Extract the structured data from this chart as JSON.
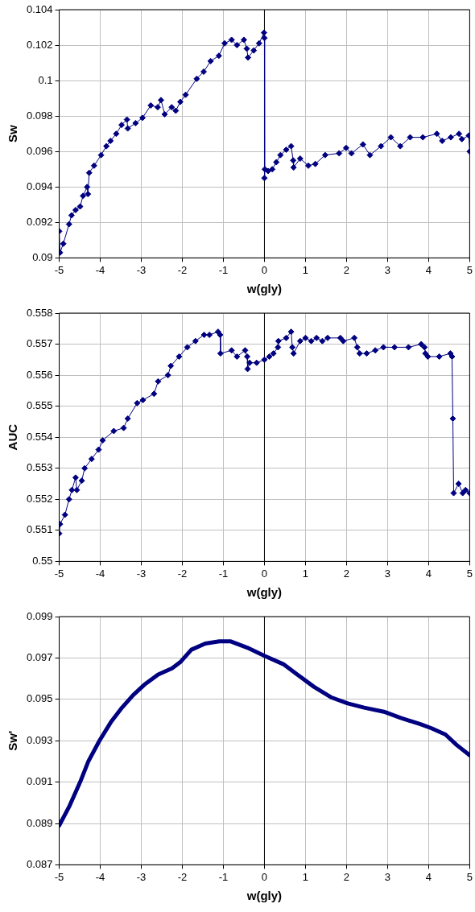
{
  "chart_data": [
    {
      "type": "line",
      "xlabel": "w(gly)",
      "ylabel": "Sw",
      "xlim": [
        -5,
        5
      ],
      "xticks": [
        -5,
        -4,
        -3,
        -2,
        -1,
        0,
        1,
        2,
        3,
        4,
        5
      ],
      "ylim": [
        0.09,
        0.104
      ],
      "yticks": [
        0.09,
        0.092,
        0.094,
        0.096,
        0.098,
        0.1,
        0.102,
        0.104
      ],
      "grid": true,
      "legend": false,
      "marker": "diamond",
      "line_style": "solid",
      "ref_lines": [
        {
          "axis": "x",
          "value": 0,
          "color": "#000000"
        }
      ],
      "series": [
        {
          "color": "#000080",
          "x": [
            -5,
            -4.98,
            -4.9,
            -4.76,
            -4.7,
            -4.6,
            -4.49,
            -4.42,
            -4.32,
            -4.3,
            -4.27,
            -4.15,
            -3.98,
            -3.85,
            -3.75,
            -3.61,
            -3.48,
            -3.35,
            -3.33,
            -3.14,
            -2.97,
            -2.77,
            -2.6,
            -2.52,
            -2.43,
            -2.26,
            -2.16,
            -2.05,
            -1.92,
            -1.65,
            -1.48,
            -1.31,
            -1.11,
            -0.97,
            -0.8,
            -0.67,
            -0.5,
            -0.43,
            -0.4,
            -0.26,
            -0.13,
            -0.01,
            0,
            0,
            0.01,
            0.09,
            0.19,
            0.29,
            0.39,
            0.53,
            0.65,
            0.7,
            0.71,
            0.87,
            1.07,
            1.24,
            1.48,
            1.82,
            1.99,
            2.12,
            2.4,
            2.57,
            2.84,
            3.08,
            3.31,
            3.55,
            3.86,
            4.2,
            4.33,
            4.54,
            4.74,
            4.81,
            4.98,
            5
          ],
          "values": [
            0.0915,
            0.0903,
            0.0908,
            0.0919,
            0.0924,
            0.0927,
            0.0929,
            0.0935,
            0.094,
            0.0936,
            0.0948,
            0.0952,
            0.0958,
            0.0963,
            0.0966,
            0.097,
            0.0975,
            0.0978,
            0.0973,
            0.0976,
            0.0979,
            0.0986,
            0.0985,
            0.0989,
            0.0981,
            0.0985,
            0.0983,
            0.0988,
            0.0992,
            0.1001,
            0.1005,
            0.1011,
            0.1014,
            0.1021,
            0.1023,
            0.102,
            0.1023,
            0.1018,
            0.1013,
            0.1017,
            0.1021,
            0.1027,
            0.1024,
            0.0945,
            0.095,
            0.0949,
            0.095,
            0.0954,
            0.0958,
            0.0961,
            0.0963,
            0.0955,
            0.0951,
            0.0956,
            0.0952,
            0.0953,
            0.0958,
            0.0959,
            0.0962,
            0.0959,
            0.0964,
            0.0958,
            0.0963,
            0.0968,
            0.0963,
            0.0968,
            0.0968,
            0.097,
            0.0966,
            0.0968,
            0.097,
            0.0967,
            0.0969,
            0.096
          ]
        }
      ]
    },
    {
      "type": "line",
      "xlabel": "w(gly)",
      "ylabel": "AUC",
      "xlim": [
        -5,
        5
      ],
      "xticks": [
        -5,
        -4,
        -3,
        -2,
        -1,
        0,
        1,
        2,
        3,
        4,
        5
      ],
      "ylim": [
        0.55,
        0.558
      ],
      "yticks": [
        0.55,
        0.551,
        0.552,
        0.553,
        0.554,
        0.555,
        0.556,
        0.557,
        0.558
      ],
      "grid": true,
      "legend": false,
      "marker": "diamond",
      "line_style": "solid",
      "ref_lines": [
        {
          "axis": "x",
          "value": 0,
          "color": "#000000"
        }
      ],
      "series": [
        {
          "color": "#000080",
          "x": [
            -5,
            -4.98,
            -4.86,
            -4.76,
            -4.69,
            -4.6,
            -4.57,
            -4.45,
            -4.38,
            -4.21,
            -4.04,
            -3.94,
            -3.67,
            -3.43,
            -3.33,
            -3.1,
            -2.96,
            -2.69,
            -2.59,
            -2.35,
            -2.28,
            -2.08,
            -1.88,
            -1.68,
            -1.47,
            -1.34,
            -1.13,
            -1.08,
            -1.07,
            -0.8,
            -0.67,
            -0.47,
            -0.42,
            -0.41,
            -0.36,
            -0.19,
            0,
            0.12,
            0.22,
            0.33,
            0.34,
            0.53,
            0.65,
            0.68,
            0.71,
            0.87,
            1,
            1.14,
            1.27,
            1.41,
            1.54,
            1.85,
            1.92,
            2.19,
            2.26,
            2.32,
            2.49,
            2.7,
            2.9,
            3.17,
            3.51,
            3.82,
            3.9,
            3.92,
            3.98,
            4.26,
            4.53,
            4.57,
            4.59,
            4.61,
            4.73,
            4.83,
            4.9,
            5
          ],
          "values": [
            0.5509,
            0.5512,
            0.5515,
            0.552,
            0.5523,
            0.5527,
            0.5523,
            0.5526,
            0.553,
            0.5533,
            0.5536,
            0.5539,
            0.5542,
            0.5543,
            0.5546,
            0.5551,
            0.5552,
            0.5554,
            0.5558,
            0.556,
            0.5563,
            0.5566,
            0.5569,
            0.5571,
            0.5573,
            0.5573,
            0.5574,
            0.5573,
            0.5567,
            0.5568,
            0.5566,
            0.5568,
            0.5566,
            0.5562,
            0.5564,
            0.5564,
            0.5565,
            0.5566,
            0.5567,
            0.5569,
            0.5571,
            0.5572,
            0.5574,
            0.5569,
            0.5567,
            0.5571,
            0.5572,
            0.5571,
            0.5572,
            0.5571,
            0.5572,
            0.5572,
            0.5571,
            0.5572,
            0.5569,
            0.5567,
            0.5567,
            0.5568,
            0.5569,
            0.5569,
            0.5569,
            0.557,
            0.5569,
            0.5567,
            0.5566,
            0.5566,
            0.5567,
            0.5566,
            0.5546,
            0.5522,
            0.5525,
            0.5522,
            0.5523,
            0.5522
          ]
        }
      ]
    },
    {
      "type": "line",
      "xlabel": "w(gly)",
      "ylabel": "Sw'",
      "xlim": [
        -5,
        5
      ],
      "xticks": [
        -5,
        -4,
        -3,
        -2,
        -1,
        0,
        1,
        2,
        3,
        4,
        5
      ],
      "ylim": [
        0.087,
        0.099
      ],
      "yticks": [
        0.087,
        0.089,
        0.091,
        0.093,
        0.095,
        0.097,
        0.099
      ],
      "grid": true,
      "legend": false,
      "marker": "none",
      "line_style": "solid",
      "ref_lines": [
        {
          "axis": "x",
          "value": 0,
          "color": "#000000"
        }
      ],
      "series": [
        {
          "color": "#000080",
          "x": [
            -5,
            -4.76,
            -4.49,
            -4.29,
            -4.02,
            -3.74,
            -3.47,
            -3.2,
            -2.93,
            -2.59,
            -2.25,
            -2.05,
            -1.78,
            -1.44,
            -1.1,
            -0.82,
            -0.42,
            0,
            0.46,
            0.8,
            1.21,
            1.62,
            2.03,
            2.43,
            2.91,
            3.32,
            3.8,
            4.07,
            4.41,
            4.68,
            5
          ],
          "values": [
            0.0889,
            0.0898,
            0.091,
            0.092,
            0.093,
            0.0939,
            0.0946,
            0.0952,
            0.0957,
            0.0962,
            0.0965,
            0.0968,
            0.0974,
            0.0977,
            0.0978,
            0.0978,
            0.0975,
            0.0971,
            0.0967,
            0.0962,
            0.0956,
            0.0951,
            0.0948,
            0.0946,
            0.0944,
            0.0941,
            0.0938,
            0.0936,
            0.0933,
            0.0928,
            0.0923
          ]
        }
      ]
    }
  ]
}
